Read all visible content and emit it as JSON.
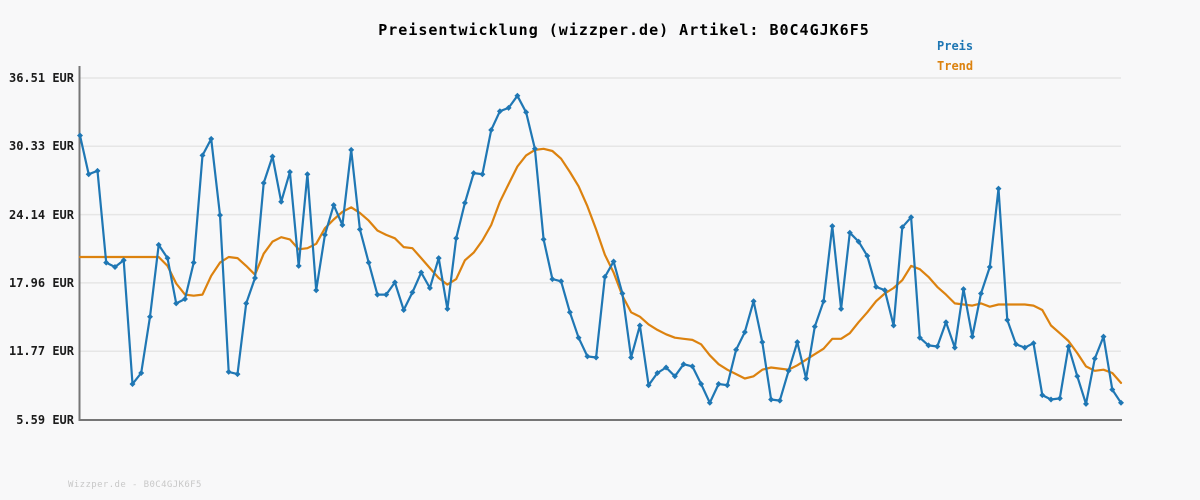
{
  "title": "Preisentwicklung (wizzper.de) Artikel: B0C4GJK6F5",
  "watermark": "Wizzper.de - B0C4GJK6F5",
  "colors": {
    "price": "#1f77b4",
    "trend": "#dc820f",
    "grid": "#e6e6e6",
    "spine": "#767676",
    "background": "#f8f8f9"
  },
  "legend": {
    "items": [
      {
        "label": "Preis",
        "color": "#1f77b4"
      },
      {
        "label": "Trend",
        "color": "#dc820f"
      }
    ]
  },
  "y_axis": {
    "unit": "EUR",
    "tick_labels": [
      "36.51 EUR",
      "30.33 EUR",
      "24.14 EUR",
      "17.96 EUR",
      "11.77 EUR",
      "5.59 EUR"
    ],
    "tick_values": [
      36.51,
      30.33,
      24.14,
      17.96,
      11.77,
      5.59
    ]
  },
  "chart_data": {
    "type": "line",
    "title": "Preisentwicklung (wizzper.de) Artikel: B0C4GJK6F5",
    "xlabel": "",
    "ylabel": "EUR",
    "ylim": [
      5.59,
      36.51
    ],
    "x_axis_labels_shown": false,
    "grid": "horizontal",
    "legend_position": "top-right",
    "series": [
      {
        "name": "Preis",
        "color": "#1f77b4",
        "marker": "diamond",
        "values": [
          31.3,
          27.8,
          28.1,
          19.8,
          19.4,
          20.0,
          8.8,
          9.8,
          14.9,
          21.4,
          20.2,
          16.1,
          16.5,
          19.8,
          29.5,
          31.0,
          24.1,
          9.9,
          9.7,
          16.1,
          18.4,
          27.0,
          29.4,
          25.3,
          28.0,
          19.5,
          27.8,
          17.3,
          22.3,
          25.0,
          23.2,
          30.0,
          22.8,
          19.8,
          16.9,
          16.9,
          18.0,
          15.5,
          17.1,
          18.9,
          17.5,
          20.2,
          15.6,
          22.0,
          25.2,
          27.9,
          27.8,
          31.8,
          33.5,
          33.8,
          34.9,
          33.4,
          30.1,
          21.9,
          18.3,
          18.1,
          15.3,
          13.0,
          11.3,
          11.2,
          18.5,
          19.9,
          17.0,
          11.2,
          14.1,
          8.7,
          9.8,
          10.3,
          9.5,
          10.6,
          10.4,
          8.8,
          7.1,
          8.8,
          8.7,
          11.9,
          13.5,
          16.3,
          12.6,
          7.4,
          7.3,
          10.0,
          12.6,
          9.3,
          14.0,
          16.3,
          23.1,
          15.6,
          22.5,
          21.7,
          20.4,
          17.6,
          17.3,
          14.1,
          23.0,
          23.9,
          13.0,
          12.3,
          12.2,
          14.4,
          12.1,
          17.4,
          13.1,
          17.0,
          19.4,
          26.5,
          14.6,
          12.4,
          12.1,
          12.5,
          7.8,
          7.4,
          7.5,
          12.2,
          9.5,
          7.0,
          11.1,
          13.1,
          8.3,
          7.1
        ]
      },
      {
        "name": "Trend",
        "color": "#dc820f",
        "marker": "none",
        "values": [
          20.3,
          20.3,
          20.3,
          20.3,
          20.3,
          20.3,
          20.3,
          20.3,
          20.3,
          20.3,
          19.5,
          17.9,
          16.9,
          16.8,
          16.9,
          18.6,
          19.8,
          20.3,
          20.2,
          19.5,
          18.7,
          20.6,
          21.7,
          22.1,
          21.9,
          21.0,
          21.1,
          21.5,
          22.9,
          23.7,
          24.4,
          24.8,
          24.3,
          23.6,
          22.7,
          22.3,
          22.0,
          21.2,
          21.1,
          20.2,
          19.3,
          18.4,
          17.8,
          18.3,
          20.0,
          20.7,
          21.8,
          23.2,
          25.3,
          26.9,
          28.5,
          29.5,
          30.0,
          30.1,
          29.9,
          29.2,
          28.0,
          26.7,
          24.9,
          22.8,
          20.5,
          18.9,
          16.8,
          15.3,
          14.9,
          14.2,
          13.7,
          13.3,
          13.0,
          12.9,
          12.8,
          12.4,
          11.4,
          10.6,
          10.1,
          9.7,
          9.3,
          9.5,
          10.1,
          10.3,
          10.2,
          10.1,
          10.5,
          11.0,
          11.5,
          12.0,
          12.9,
          12.9,
          13.4,
          14.4,
          15.3,
          16.3,
          17.0,
          17.5,
          18.2,
          19.5,
          19.2,
          18.5,
          17.6,
          16.9,
          16.1,
          16.0,
          15.9,
          16.1,
          15.8,
          16.0,
          16.0,
          16.0,
          16.0,
          15.9,
          15.5,
          14.1,
          13.4,
          12.7,
          11.6,
          10.4,
          10.0,
          10.1,
          9.8,
          8.9
        ]
      }
    ]
  }
}
